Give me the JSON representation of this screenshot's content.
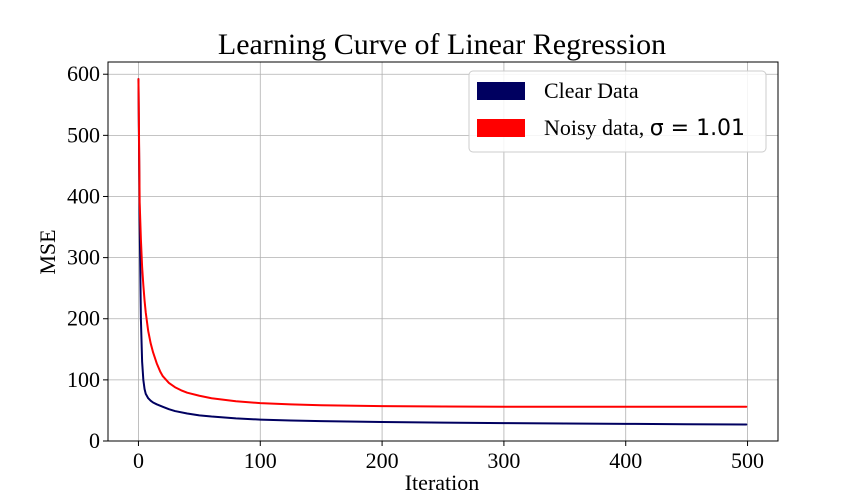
{
  "chart_data": {
    "type": "line",
    "title": "Learning Curve of Linear Regression",
    "xlabel": "Iteration",
    "ylabel": "MSE",
    "xlim": [
      -25,
      525
    ],
    "ylim": [
      0,
      620
    ],
    "xticks": [
      0,
      100,
      200,
      300,
      400,
      500
    ],
    "yticks": [
      0,
      100,
      200,
      300,
      400,
      500,
      600
    ],
    "grid": true,
    "legend_position": "top-right",
    "series": [
      {
        "name": "Clear Data",
        "color": "#000060",
        "x": [
          0,
          1,
          2,
          3,
          4,
          5,
          6,
          8,
          10,
          12,
          15,
          20,
          25,
          30,
          40,
          50,
          60,
          80,
          100,
          125,
          150,
          200,
          250,
          300,
          350,
          400,
          450,
          499
        ],
        "values": [
          592,
          360,
          200,
          130,
          100,
          85,
          77,
          70,
          66,
          63,
          60,
          56,
          52,
          49,
          45,
          42,
          40,
          37,
          35,
          33.5,
          32.5,
          31,
          30,
          29.2,
          28.6,
          28,
          27.5,
          27
        ]
      },
      {
        "name": "Noisy data, ",
        "name_math": "σ = 1.01",
        "color": "#ff0000",
        "x": [
          0,
          1,
          2,
          3,
          4,
          5,
          6,
          8,
          10,
          12,
          15,
          18,
          20,
          25,
          30,
          35,
          40,
          50,
          60,
          80,
          100,
          125,
          150,
          200,
          250,
          300,
          350,
          400,
          450,
          499
        ],
        "values": [
          592,
          390,
          330,
          285,
          255,
          230,
          210,
          180,
          160,
          145,
          127,
          113,
          106,
          95,
          88,
          83,
          79,
          74,
          70,
          65,
          62,
          60,
          58.5,
          57,
          56.5,
          56,
          56,
          56,
          56,
          56
        ]
      }
    ]
  }
}
